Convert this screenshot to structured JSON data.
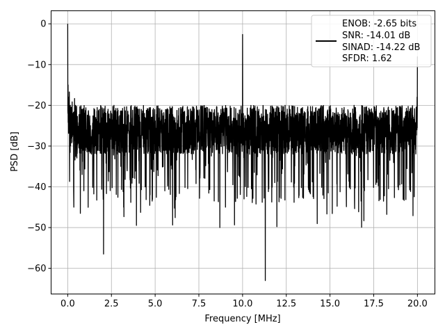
{
  "chart_data": {
    "type": "line",
    "title": "",
    "xlabel": "Frequency [MHz]",
    "ylabel": "PSD [dB]",
    "xlim": [
      -0.95,
      21.0
    ],
    "ylim": [
      -66.3,
      3.2
    ],
    "xticks": [
      0.0,
      2.5,
      5.0,
      7.5,
      10.0,
      12.5,
      15.0,
      17.5,
      20.0
    ],
    "xtick_labels": [
      "0.0",
      "2.5",
      "5.0",
      "7.5",
      "10.0",
      "12.5",
      "15.0",
      "17.5",
      "20.0"
    ],
    "yticks": [
      0,
      -10,
      -20,
      -30,
      -40,
      -50,
      -60
    ],
    "ytick_labels": [
      "0",
      "−10",
      "−20",
      "−30",
      "−40",
      "−50",
      "−60"
    ],
    "grid": true,
    "legend_position": "top-right",
    "line_color": "#000000",
    "legend_entries": [
      "ENOB: -2.65 bits",
      "SNR: -14.01 dB",
      "SINAD: -14.22 dB",
      "SFDR: 1.62"
    ],
    "series": [
      {
        "x": [
          0.0,
          0.02,
          0.04,
          0.07,
          0.1,
          0.15,
          0.2,
          0.3,
          0.35,
          0.45,
          0.6,
          0.8,
          1.0,
          1.3,
          1.6,
          1.9,
          2.05,
          2.2,
          2.5,
          2.8,
          3.0,
          3.2,
          3.5,
          3.8,
          4.2,
          4.6,
          5.0,
          5.4,
          5.8,
          6.2,
          6.6,
          7.0,
          7.5,
          8.0,
          8.5,
          8.7,
          9.0,
          9.4,
          9.8,
          9.95,
          10.0,
          10.05,
          10.3,
          10.7,
          11.0,
          11.3,
          11.6,
          12.0,
          12.5,
          13.0,
          13.5,
          13.9,
          14.3,
          14.7,
          15.0,
          15.4,
          15.8,
          16.2,
          16.6,
          17.0,
          17.5,
          18.0,
          18.5,
          19.0,
          19.3,
          19.6,
          19.9,
          19.98,
          20.0
        ],
        "y": [
          0.0,
          -15.0,
          -22.0,
          -18.0,
          -26.0,
          -20.0,
          -28.0,
          -22.0,
          -45.0,
          -24.0,
          -27.0,
          -21.0,
          -30.0,
          -25.0,
          -23.0,
          -31.0,
          -56.5,
          -26.0,
          -22.0,
          -29.0,
          -24.0,
          -45.0,
          -27.0,
          -23.0,
          -30.0,
          -25.0,
          -28.0,
          -22.0,
          -31.0,
          -26.0,
          -24.0,
          -29.0,
          -27.0,
          -23.0,
          -30.0,
          -50.0,
          -25.0,
          -28.0,
          -24.0,
          -29.0,
          -2.6,
          -27.0,
          -23.0,
          -30.0,
          -25.0,
          -63.0,
          -28.0,
          -24.0,
          -29.0,
          -26.0,
          -22.0,
          -30.0,
          -27.0,
          -24.0,
          -29.0,
          -25.0,
          -28.0,
          -23.0,
          -30.0,
          -26.0,
          -24.0,
          -29.0,
          -27.0,
          -25.0,
          -28.0,
          -24.0,
          -27.0,
          -18.0,
          -8.0
        ]
      }
    ]
  }
}
